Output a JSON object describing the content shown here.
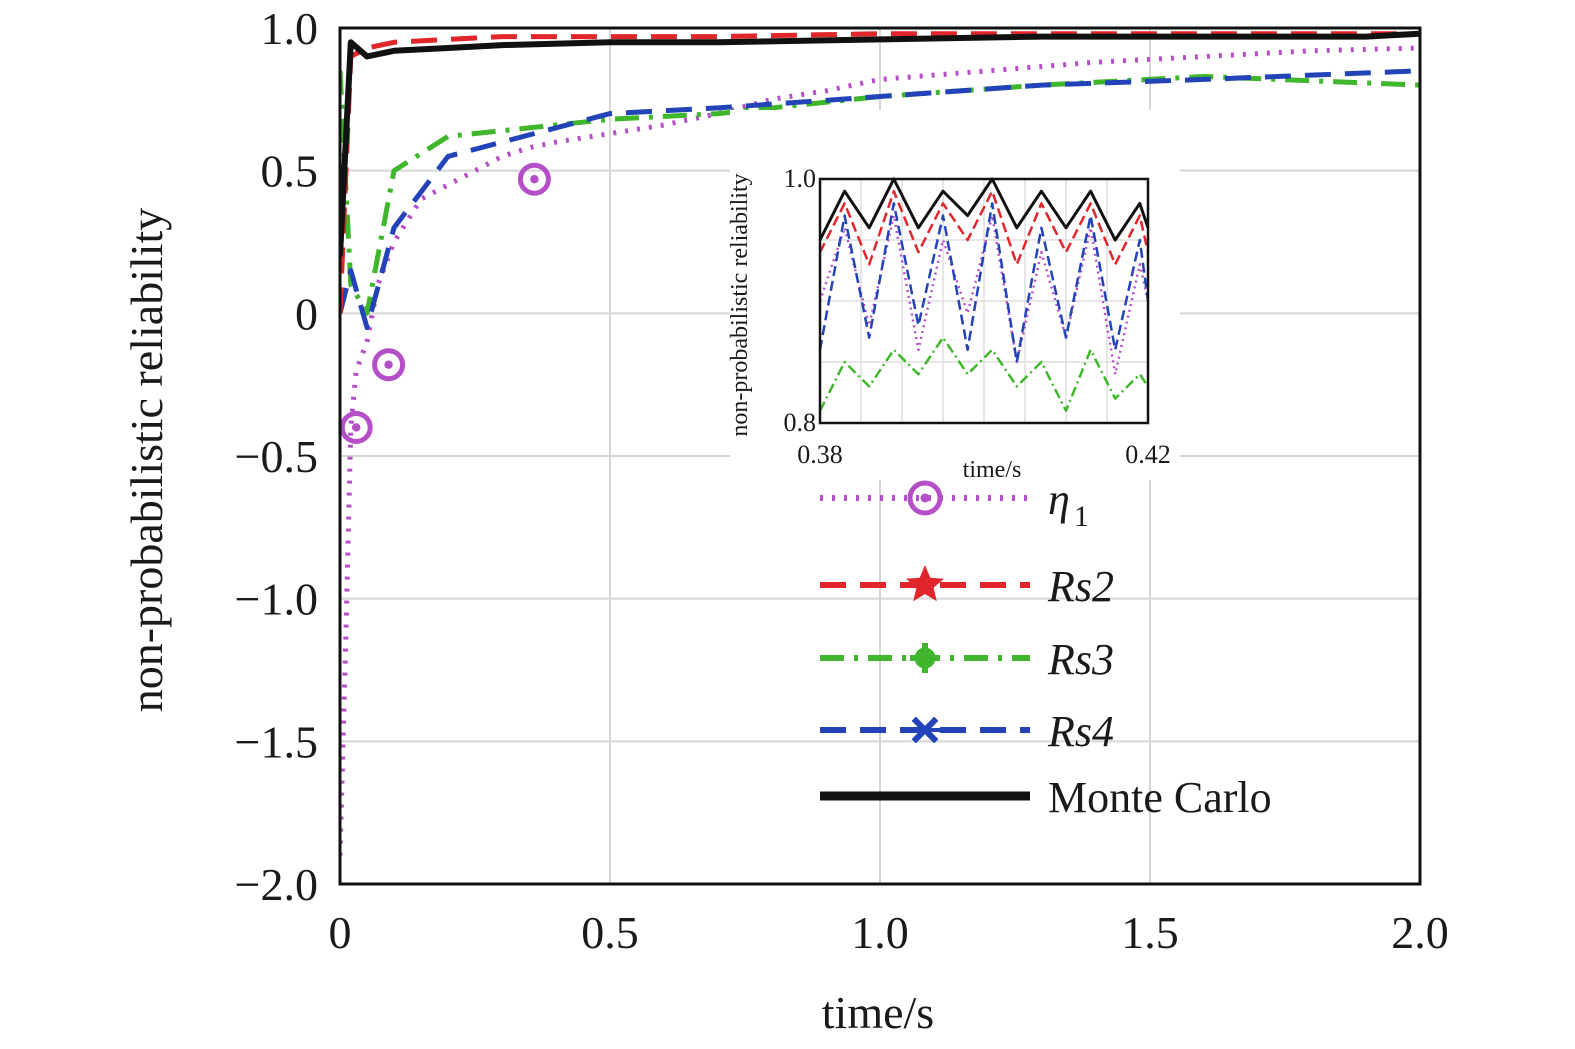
{
  "chart_data": [
    {
      "type": "line",
      "xlabel": "time/s",
      "ylabel": "non-probabilistic reliability",
      "xlim": [
        0,
        2.0
      ],
      "ylim": [
        -2.0,
        1.0
      ],
      "xticks": [
        "0",
        "0.5",
        "1.0",
        "1.5",
        "2.0"
      ],
      "yticks": [
        "1.0",
        "0.5",
        "0",
        "−0.5",
        "−1.0",
        "−1.5",
        "−2.0"
      ],
      "xtick_values": [
        0,
        0.5,
        1.0,
        1.5,
        2.0
      ],
      "ytick_values": [
        1.0,
        0.5,
        0,
        -0.5,
        -1.0,
        -1.5,
        -2.0
      ],
      "grid": true,
      "legend_position": "right",
      "series": [
        {
          "name": "η",
          "subscript": "1",
          "color": "#b44fc8",
          "linestyle": "dotted",
          "marker": "circle",
          "x": [
            0.0,
            0.01,
            0.02,
            0.03,
            0.05,
            0.07,
            0.1,
            0.15,
            0.2,
            0.25,
            0.3,
            0.35,
            0.4,
            0.5,
            0.6,
            0.7,
            0.8,
            0.9,
            1.0,
            1.2,
            1.4,
            1.6,
            1.8,
            2.0
          ],
          "values": [
            -1.9,
            -1.2,
            -0.4,
            -0.2,
            -0.1,
            0.1,
            0.25,
            0.4,
            0.45,
            0.5,
            0.55,
            0.58,
            0.6,
            0.63,
            0.66,
            0.7,
            0.75,
            0.78,
            0.82,
            0.85,
            0.88,
            0.9,
            0.92,
            0.93
          ],
          "marker_x": [
            0.03,
            0.09,
            0.36
          ],
          "marker_y": [
            -0.4,
            -0.18,
            0.47
          ]
        },
        {
          "name": "Rs2",
          "color": "#e0262b",
          "linestyle": "dashed",
          "marker": "star",
          "x": [
            0.0,
            0.02,
            0.05,
            0.1,
            0.2,
            0.3,
            0.5,
            0.7,
            1.0,
            1.3,
            1.6,
            2.0
          ],
          "values": [
            0.0,
            0.9,
            0.93,
            0.95,
            0.96,
            0.97,
            0.97,
            0.97,
            0.98,
            0.98,
            0.98,
            0.98
          ]
        },
        {
          "name": "Rs3",
          "color": "#3fb62c",
          "linestyle": "dashdot",
          "marker": "plus",
          "x": [
            0.0,
            0.02,
            0.05,
            0.1,
            0.2,
            0.3,
            0.5,
            0.7,
            1.0,
            1.3,
            1.6,
            2.0
          ],
          "values": [
            0.85,
            0.1,
            0.0,
            0.5,
            0.62,
            0.64,
            0.68,
            0.7,
            0.76,
            0.8,
            0.83,
            0.8
          ]
        },
        {
          "name": "Rs4",
          "color": "#2343b8",
          "linestyle": "dashed",
          "marker": "x",
          "x": [
            0.0,
            0.02,
            0.05,
            0.1,
            0.2,
            0.3,
            0.5,
            0.7,
            1.0,
            1.3,
            1.6,
            2.0
          ],
          "values": [
            0.0,
            0.15,
            -0.05,
            0.3,
            0.55,
            0.6,
            0.7,
            0.72,
            0.76,
            0.8,
            0.82,
            0.85
          ]
        },
        {
          "name": "Monte Carlo",
          "color": "#111111",
          "linestyle": "solid",
          "marker": "none",
          "x": [
            0.0,
            0.02,
            0.05,
            0.1,
            0.2,
            0.3,
            0.5,
            0.7,
            1.0,
            1.3,
            1.6,
            1.9,
            2.0
          ],
          "values": [
            0.2,
            0.95,
            0.9,
            0.92,
            0.93,
            0.94,
            0.95,
            0.95,
            0.96,
            0.97,
            0.97,
            0.97,
            0.98
          ]
        }
      ]
    },
    {
      "type": "line",
      "role": "inset",
      "xlabel": "time/s",
      "ylabel": "non-probabilistic reliability",
      "xlim": [
        0.38,
        0.42
      ],
      "ylim": [
        0.8,
        1.0
      ],
      "xticks": [
        "0.38",
        "0.42"
      ],
      "yticks": [
        "1.0",
        "0.8"
      ],
      "xtick_values": [
        0.38,
        0.42
      ],
      "ytick_values": [
        1.0,
        0.8
      ],
      "grid": true,
      "series": [
        {
          "name": "η",
          "subscript": "1",
          "color": "#b44fc8",
          "linestyle": "dotted",
          "x": [
            0.38,
            0.383,
            0.386,
            0.389,
            0.392,
            0.395,
            0.398,
            0.401,
            0.404,
            0.407,
            0.41,
            0.413,
            0.416,
            0.419,
            0.42
          ],
          "values": [
            0.9,
            0.96,
            0.88,
            0.97,
            0.86,
            0.95,
            0.89,
            0.97,
            0.85,
            0.94,
            0.87,
            0.96,
            0.84,
            0.93,
            0.9
          ]
        },
        {
          "name": "Rs2",
          "color": "#e0262b",
          "linestyle": "dashed",
          "x": [
            0.38,
            0.383,
            0.386,
            0.389,
            0.392,
            0.395,
            0.398,
            0.401,
            0.404,
            0.407,
            0.41,
            0.413,
            0.416,
            0.419,
            0.42
          ],
          "values": [
            0.94,
            0.98,
            0.93,
            0.99,
            0.94,
            0.98,
            0.95,
            0.99,
            0.93,
            0.98,
            0.94,
            0.98,
            0.93,
            0.97,
            0.94
          ]
        },
        {
          "name": "Rs3",
          "color": "#3fb62c",
          "linestyle": "dashdot",
          "x": [
            0.38,
            0.383,
            0.386,
            0.389,
            0.392,
            0.395,
            0.398,
            0.401,
            0.404,
            0.407,
            0.41,
            0.413,
            0.416,
            0.419,
            0.42
          ],
          "values": [
            0.81,
            0.85,
            0.83,
            0.86,
            0.84,
            0.87,
            0.84,
            0.86,
            0.83,
            0.85,
            0.81,
            0.86,
            0.82,
            0.84,
            0.83
          ]
        },
        {
          "name": "Rs4",
          "color": "#2343b8",
          "linestyle": "dashed",
          "x": [
            0.38,
            0.383,
            0.386,
            0.389,
            0.392,
            0.395,
            0.398,
            0.401,
            0.404,
            0.407,
            0.41,
            0.413,
            0.416,
            0.419,
            0.42
          ],
          "values": [
            0.86,
            0.97,
            0.87,
            0.98,
            0.88,
            0.97,
            0.86,
            0.98,
            0.85,
            0.96,
            0.87,
            0.97,
            0.86,
            0.95,
            0.9
          ]
        },
        {
          "name": "Monte Carlo",
          "color": "#111111",
          "linestyle": "solid",
          "x": [
            0.38,
            0.383,
            0.386,
            0.389,
            0.392,
            0.395,
            0.398,
            0.401,
            0.404,
            0.407,
            0.41,
            0.413,
            0.416,
            0.419,
            0.42
          ],
          "values": [
            0.95,
            0.99,
            0.96,
            1.0,
            0.96,
            0.99,
            0.97,
            1.0,
            0.96,
            0.99,
            0.96,
            0.99,
            0.95,
            0.98,
            0.96
          ]
        }
      ]
    }
  ]
}
